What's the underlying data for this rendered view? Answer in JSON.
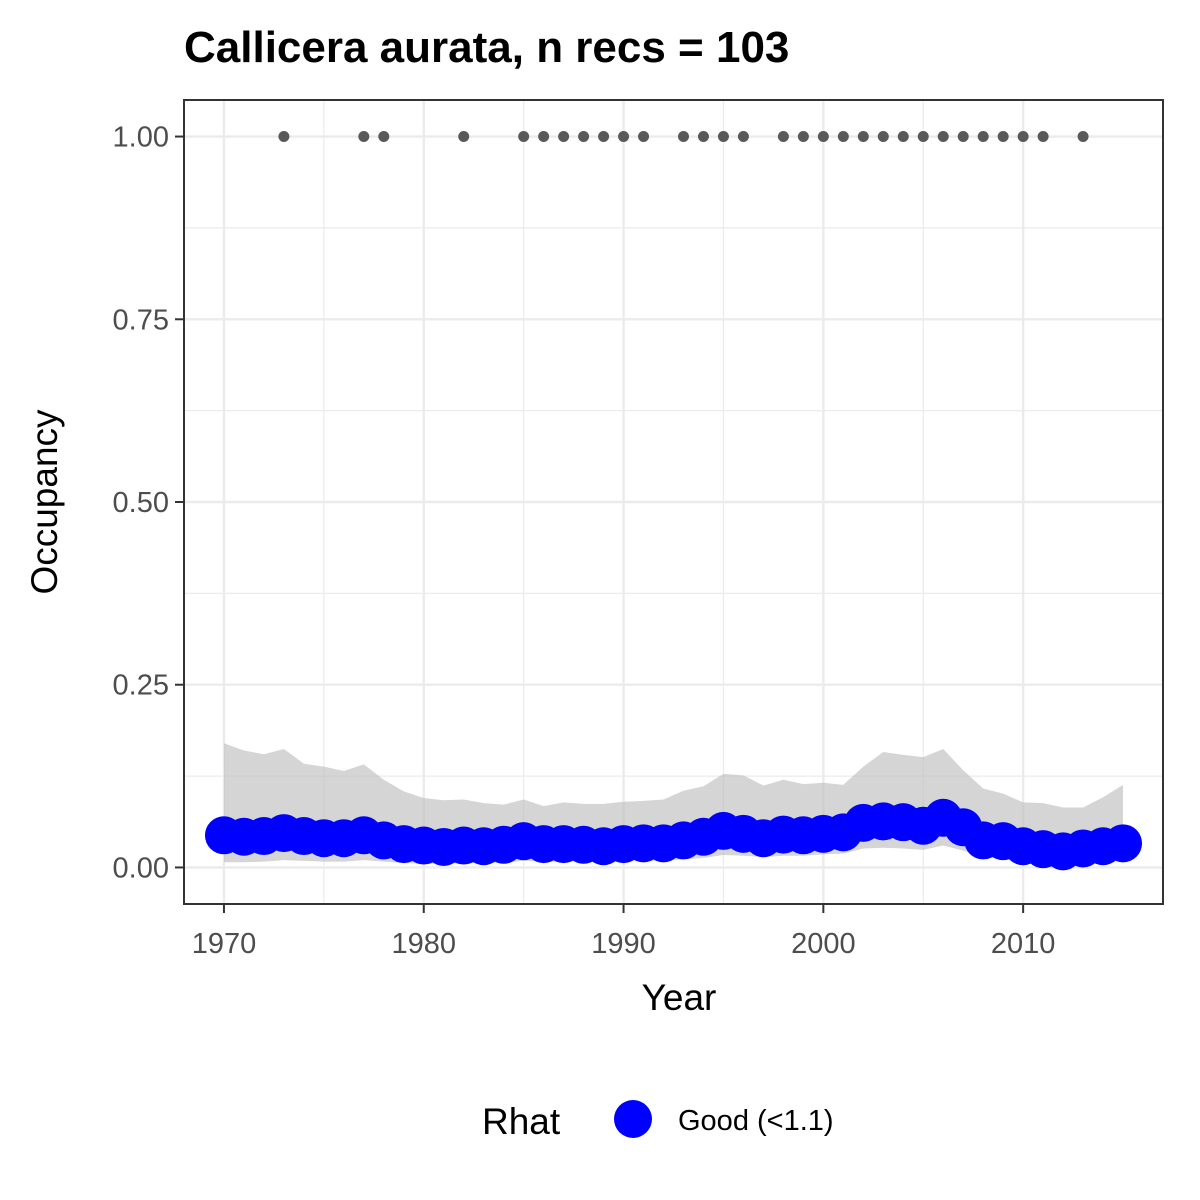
{
  "chart_data": {
    "type": "line",
    "title": "Callicera aurata, n recs = 103",
    "xlabel": "Year",
    "ylabel": "Occupancy",
    "xlim": [
      1968,
      2017
    ],
    "ylim": [
      -0.05,
      1.05
    ],
    "x_ticks": [
      1970,
      1980,
      1990,
      2000,
      2010
    ],
    "x_tick_labels": [
      "1970",
      "1980",
      "1990",
      "2000",
      "2010"
    ],
    "y_ticks": [
      0,
      0.25,
      0.5,
      0.75,
      1
    ],
    "y_tick_labels": [
      "0.00",
      "0.25",
      "0.50",
      "0.75",
      "1.00"
    ],
    "grid": true,
    "years": [
      1970,
      1971,
      1972,
      1973,
      1974,
      1975,
      1976,
      1977,
      1978,
      1979,
      1980,
      1981,
      1982,
      1983,
      1984,
      1985,
      1986,
      1987,
      1988,
      1989,
      1990,
      1991,
      1992,
      1993,
      1994,
      1995,
      1996,
      1997,
      1998,
      1999,
      2000,
      2001,
      2002,
      2003,
      2004,
      2005,
      2006,
      2007,
      2008,
      2009,
      2010,
      2011,
      2012,
      2013,
      2014,
      2015
    ],
    "occupancy": [
      0.044,
      0.042,
      0.043,
      0.047,
      0.043,
      0.04,
      0.04,
      0.044,
      0.037,
      0.032,
      0.03,
      0.028,
      0.03,
      0.029,
      0.031,
      0.036,
      0.032,
      0.032,
      0.031,
      0.029,
      0.032,
      0.033,
      0.033,
      0.037,
      0.042,
      0.05,
      0.046,
      0.04,
      0.045,
      0.044,
      0.046,
      0.048,
      0.061,
      0.063,
      0.062,
      0.057,
      0.068,
      0.055,
      0.037,
      0.036,
      0.029,
      0.025,
      0.022,
      0.026,
      0.029,
      0.033
    ],
    "ci_upper": [
      0.17,
      0.16,
      0.155,
      0.162,
      0.142,
      0.138,
      0.132,
      0.141,
      0.12,
      0.104,
      0.095,
      0.092,
      0.093,
      0.088,
      0.086,
      0.093,
      0.084,
      0.089,
      0.087,
      0.087,
      0.09,
      0.091,
      0.093,
      0.105,
      0.111,
      0.128,
      0.126,
      0.112,
      0.12,
      0.114,
      0.116,
      0.113,
      0.138,
      0.158,
      0.154,
      0.151,
      0.162,
      0.133,
      0.108,
      0.101,
      0.089,
      0.088,
      0.082,
      0.082,
      0.096,
      0.113
    ],
    "ci_lower": [
      0.007,
      0.007,
      0.008,
      0.01,
      0.009,
      0.008,
      0.008,
      0.01,
      0.008,
      0.006,
      0.005,
      0.005,
      0.006,
      0.006,
      0.007,
      0.009,
      0.008,
      0.008,
      0.008,
      0.007,
      0.008,
      0.009,
      0.009,
      0.011,
      0.013,
      0.017,
      0.016,
      0.014,
      0.016,
      0.016,
      0.018,
      0.019,
      0.026,
      0.027,
      0.026,
      0.024,
      0.03,
      0.023,
      0.013,
      0.012,
      0.008,
      0.007,
      0.006,
      0.007,
      0.008,
      0.009
    ],
    "record_years": [
      1973,
      1977,
      1978,
      1982,
      1985,
      1986,
      1987,
      1988,
      1989,
      1990,
      1991,
      1993,
      1994,
      1995,
      1996,
      1998,
      1999,
      2000,
      2001,
      2002,
      2003,
      2004,
      2005,
      2006,
      2007,
      2008,
      2009,
      2010,
      2011,
      2013
    ],
    "record_value": 1.0,
    "legend": {
      "title": "Rhat",
      "position": "bottom",
      "entries": [
        {
          "label": "Good (<1.1)",
          "color": "#0000FF"
        }
      ]
    },
    "colors": {
      "point": "#0000FF",
      "ribbon": "#BEBEBE",
      "record": "#595959",
      "panel_border": "#333333",
      "grid": "#EBEBEB"
    }
  }
}
